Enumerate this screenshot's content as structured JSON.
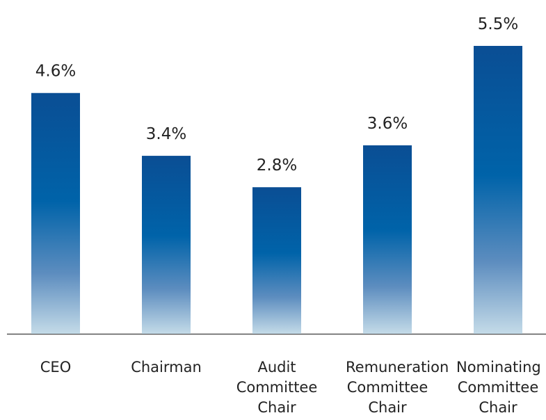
{
  "chart_data": {
    "type": "bar",
    "categories": [
      "CEO",
      "Chairman",
      "Audit Committee Chair",
      "Remuneration Committee Chair",
      "Nominating Committee Chair"
    ],
    "values": [
      4.6,
      3.4,
      2.8,
      3.6,
      5.5
    ],
    "value_labels": [
      "4.6%",
      "3.4%",
      "2.8%",
      "3.6%",
      "5.5%"
    ]
  }
}
